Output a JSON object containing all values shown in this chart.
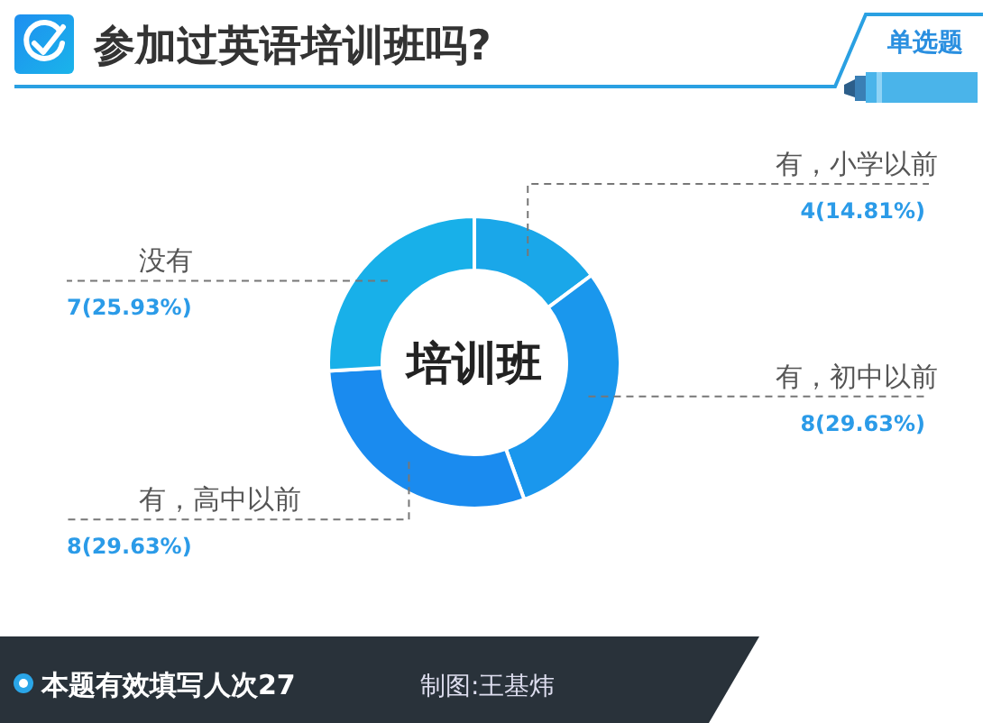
{
  "chart_data": {
    "type": "donut",
    "title": "参加过英语培训班吗?",
    "categories": [
      "有，小学以前",
      "有，初中以前",
      "有，高中以前",
      "没有"
    ],
    "values": [
      4,
      8,
      8,
      7
    ],
    "value_labels": [
      "4(14.81%)",
      "8(29.63%)",
      "8(29.63%)",
      "7(25.93%)"
    ],
    "colors": [
      "#1aa7e9",
      "#1a97ed",
      "#1a8bef",
      "#18b0e9"
    ],
    "annotations": [
      "培训班",
      "单选题",
      "本题有效填写人次27",
      "制图:王基炜"
    ]
  }
}
